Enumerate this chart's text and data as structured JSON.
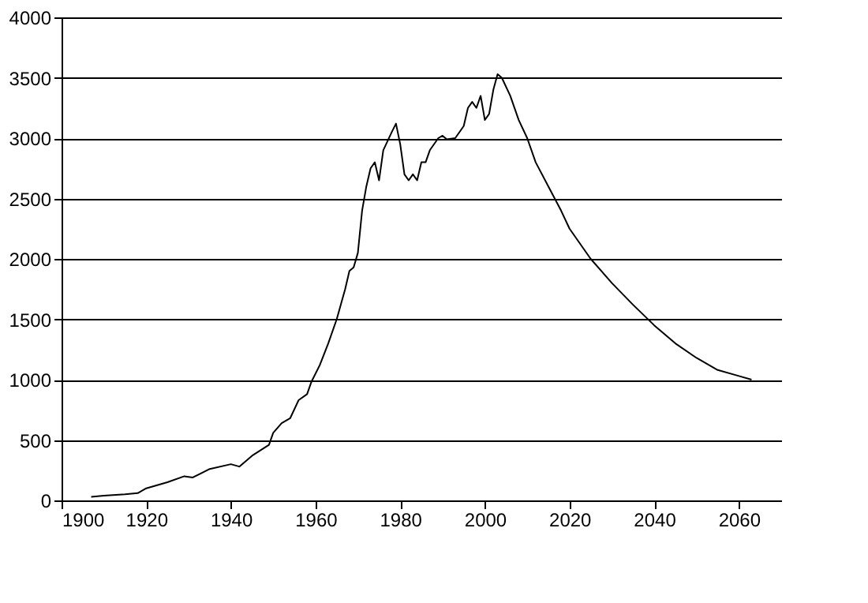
{
  "chart_data": {
    "type": "line",
    "x": [
      1907,
      1910,
      1915,
      1918,
      1920,
      1925,
      1929,
      1931,
      1935,
      1940,
      1942,
      1945,
      1949,
      1950,
      1952,
      1954,
      1956,
      1958,
      1959,
      1961,
      1963,
      1965,
      1967,
      1968,
      1969,
      1970,
      1971,
      1972,
      1973,
      1974,
      1975,
      1976,
      1978,
      1979,
      1980,
      1981,
      1982,
      1983,
      1984,
      1985,
      1986,
      1987,
      1989,
      1990,
      1991,
      1993,
      1995,
      1996,
      1997,
      1998,
      1999,
      2000,
      2001,
      2002,
      2003,
      2004,
      2006,
      2008,
      2010,
      2012,
      2015,
      2018,
      2020,
      2025,
      2030,
      2035,
      2040,
      2045,
      2050,
      2055,
      2060,
      2063
    ],
    "series": [
      {
        "color": "#000000",
        "values": [
          30,
          40,
          50,
          60,
          100,
          150,
          200,
          190,
          260,
          300,
          280,
          370,
          460,
          560,
          640,
          680,
          830,
          880,
          980,
          1120,
          1300,
          1500,
          1750,
          1900,
          1930,
          2050,
          2400,
          2600,
          2750,
          2800,
          2650,
          2900,
          3050,
          3120,
          2950,
          2700,
          2650,
          2700,
          2650,
          2800,
          2800,
          2900,
          3000,
          3020,
          2990,
          3000,
          3100,
          3250,
          3300,
          3250,
          3350,
          3150,
          3200,
          3400,
          3530,
          3500,
          3350,
          3150,
          3000,
          2800,
          2600,
          2400,
          2250,
          2000,
          1800,
          1620,
          1450,
          1300,
          1180,
          1080,
          1030,
          1000
        ]
      }
    ],
    "xlim": [
      1900,
      2070
    ],
    "xticks": [
      1900,
      1920,
      1940,
      1960,
      1980,
      2000,
      2020,
      2040,
      2060
    ],
    "ylim": [
      0,
      4000
    ],
    "yticks": [
      0,
      500,
      1000,
      1500,
      2000,
      2500,
      3000,
      3500,
      4000
    ],
    "grid": "y",
    "legend": false,
    "marker": "none",
    "line_style": "solid"
  }
}
